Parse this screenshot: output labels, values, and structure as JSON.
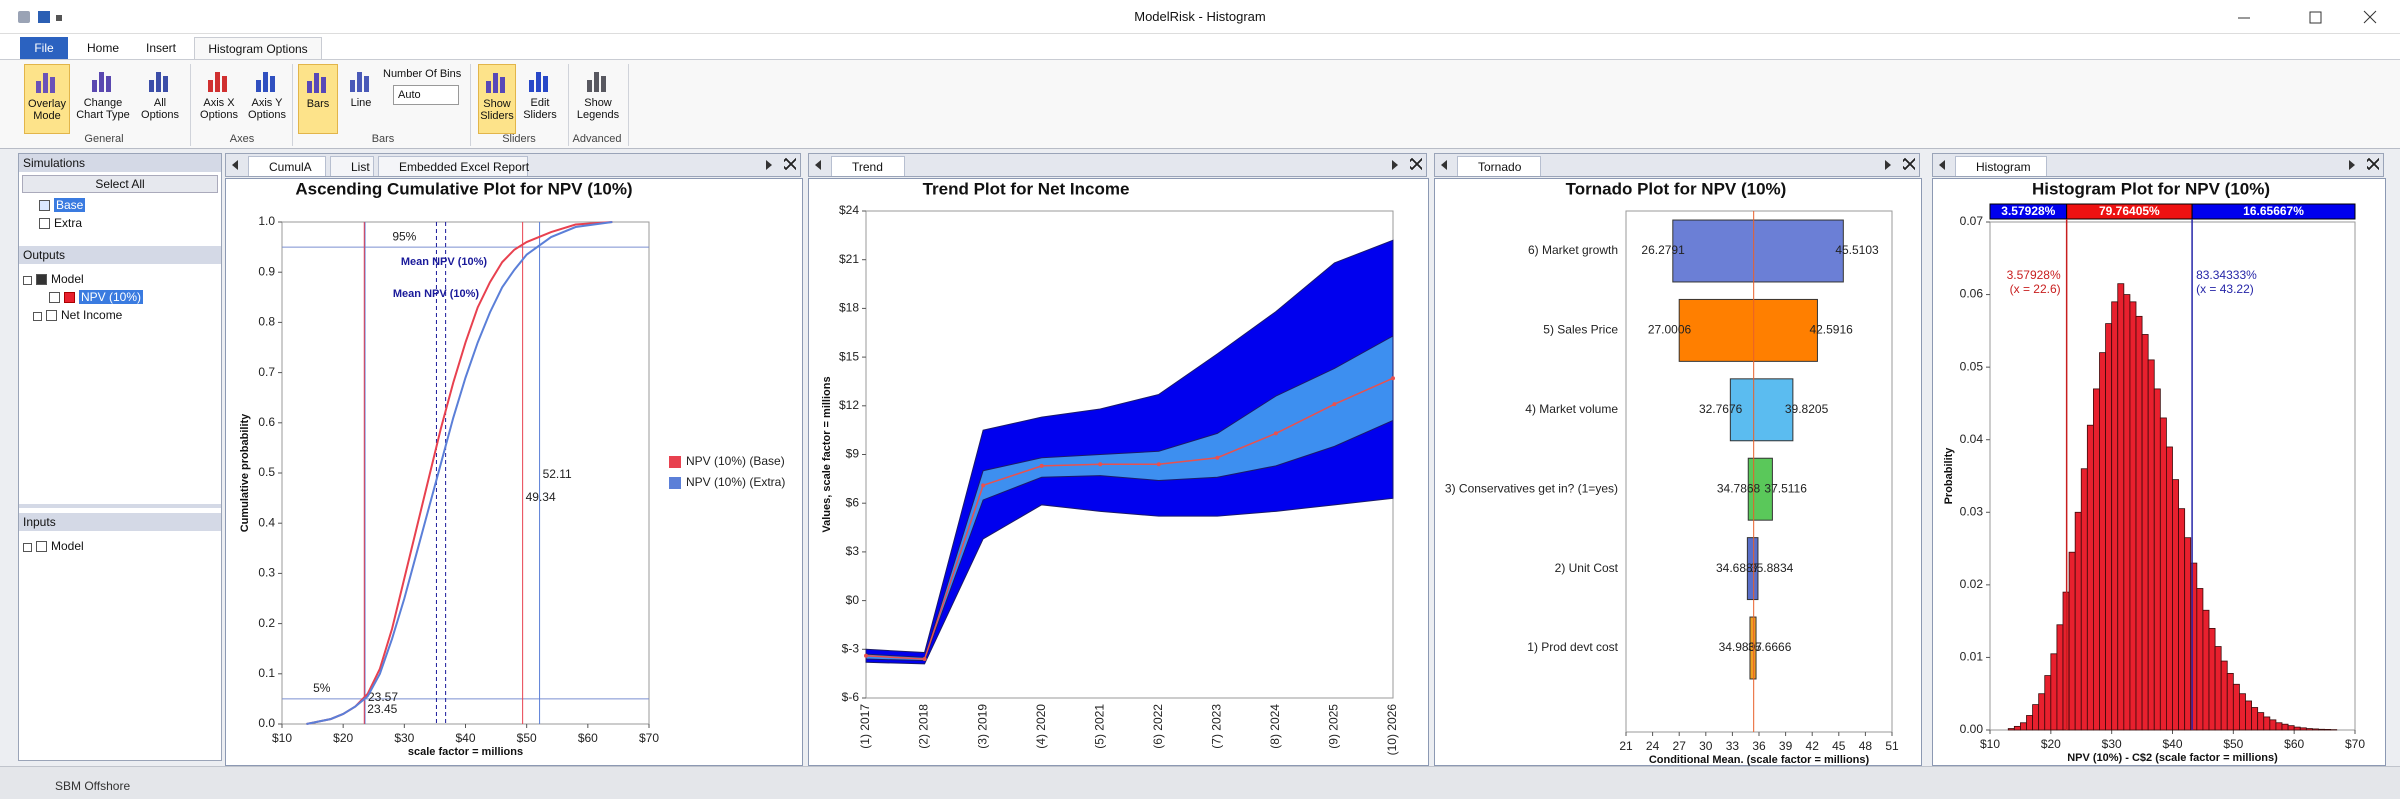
{
  "window": {
    "title": "ModelRisk - Histogram"
  },
  "ribbon": {
    "tabs": [
      "File",
      "Home",
      "Insert",
      "Histogram Options"
    ],
    "groups": [
      {
        "label": "General",
        "buttons": [
          "Overlay Mode",
          "Change Chart Type",
          "All Options"
        ]
      },
      {
        "label": "Axes",
        "buttons": [
          "Axis X Options",
          "Axis Y Options"
        ]
      },
      {
        "label": "Bars",
        "buttons": [
          "Bars",
          "Line"
        ],
        "bins_label": "Number Of Bins",
        "bins_value": "Auto"
      },
      {
        "label": "Sliders",
        "buttons": [
          "Show Sliders",
          "Edit Sliders"
        ]
      },
      {
        "label": "Advanced",
        "buttons": [
          "Show Legends"
        ]
      }
    ]
  },
  "sidebar": {
    "simulations": {
      "title": "Simulations",
      "select_all": "Select All",
      "items": [
        "Base",
        "Extra"
      ]
    },
    "outputs": {
      "title": "Outputs",
      "model": "Model",
      "items": [
        "NPV (10%)",
        "Net Income"
      ]
    },
    "inputs": {
      "title": "Inputs",
      "items": [
        "Model"
      ]
    }
  },
  "panel_tabs": [
    [
      "CumulA",
      "List",
      "Embedded Excel Report"
    ],
    [
      "Trend"
    ],
    [
      "Tornado"
    ],
    [
      "Histogram"
    ]
  ],
  "status": {
    "text": "SBM Offshore"
  },
  "chart_data": [
    {
      "type": "line",
      "title": "Ascending Cumulative Plot for NPV (10%)",
      "x_label": "scale factor = millions",
      "y_label": "Cumulative probability",
      "xlim": [
        10,
        70
      ],
      "xticks": [
        {
          "value": 10,
          "label": "$10"
        },
        {
          "value": 20,
          "label": "$20"
        },
        {
          "value": 30,
          "label": "$30"
        },
        {
          "value": 40,
          "label": "$40"
        },
        {
          "value": 50,
          "label": "$50"
        },
        {
          "value": 60,
          "label": "$60"
        },
        {
          "value": 70,
          "label": "$70"
        }
      ],
      "ylim": [
        0,
        1
      ],
      "yticks": [
        {
          "value": 0,
          "label": "0.0"
        },
        0.1,
        0.2,
        0.3,
        0.4,
        0.5,
        0.6,
        0.7,
        0.8,
        0.9,
        {
          "value": 1,
          "label": "1.0"
        }
      ],
      "x": [
        14,
        18,
        20,
        22,
        24,
        26,
        28,
        30,
        32,
        34,
        36,
        38,
        40,
        42,
        44,
        46,
        48,
        50,
        54,
        58,
        64
      ],
      "series": [
        {
          "name": "NPV (10%) (Base)",
          "color": "#e8414f",
          "values": [
            0,
            0.01,
            0.02,
            0.035,
            0.06,
            0.11,
            0.19,
            0.29,
            0.39,
            0.49,
            0.59,
            0.68,
            0.76,
            0.83,
            0.88,
            0.92,
            0.945,
            0.96,
            0.98,
            0.995,
            1
          ]
        },
        {
          "name": "NPV (10%) (Extra)",
          "color": "#5b7fd8",
          "values": [
            0,
            0.01,
            0.02,
            0.035,
            0.055,
            0.1,
            0.17,
            0.25,
            0.34,
            0.43,
            0.52,
            0.61,
            0.69,
            0.76,
            0.82,
            0.87,
            0.905,
            0.935,
            0.97,
            0.99,
            1
          ]
        }
      ],
      "legend": "right",
      "percentile_lines": [
        {
          "value": 0.95,
          "label": "95%"
        },
        {
          "value": 0.05,
          "label": "5%"
        }
      ],
      "percentile_color": "#7b8fd0",
      "mean_lines": [
        {
          "value": 35.25,
          "label": "Mean NPV (10%)"
        },
        {
          "value": 36.75,
          "label": "Mean NPV (10%)"
        }
      ],
      "mean_color": "#1a1a9a",
      "sliders": [
        {
          "value": 23.57,
          "color": "#5b7fd8"
        },
        {
          "value": 23.45,
          "color": "#e8414f"
        },
        {
          "value": 52.11,
          "color": "#5b7fd8"
        },
        {
          "value": 49.34,
          "color": "#e8414f"
        }
      ]
    },
    {
      "type": "fan",
      "title": "Trend Plot for Net Income",
      "y_label": "Values, scale factor = millions",
      "categories": [
        "(1) 2017",
        "(2) 2018",
        "(3) 2019",
        "(4) 2020",
        "(5) 2021",
        "(6) 2022",
        "(7) 2023",
        "(8) 2024",
        "(9) 2025",
        "(10) 2026"
      ],
      "ylim": [
        -6,
        24
      ],
      "yticks": [
        {
          "value": -6,
          "label": "$-6"
        },
        {
          "value": -3,
          "label": "$-3"
        },
        {
          "value": 0,
          "label": "$0"
        },
        {
          "value": 3,
          "label": "$3"
        },
        {
          "value": 6,
          "label": "$6"
        },
        {
          "value": 9,
          "label": "$9"
        },
        {
          "value": 12,
          "label": "$12"
        },
        {
          "value": 15,
          "label": "$15"
        },
        {
          "value": 18,
          "label": "$18"
        },
        {
          "value": 21,
          "label": "$21"
        },
        {
          "value": 24,
          "label": "$24"
        }
      ],
      "bands": [
        {
          "color": "#0000ee",
          "upper": [
            -3.0,
            -3.2,
            10.5,
            11.3,
            11.8,
            12.7,
            15.2,
            17.8,
            20.8,
            22.2
          ],
          "lower": [
            -3.8,
            -3.9,
            3.8,
            5.9,
            5.5,
            5.2,
            5.2,
            5.5,
            5.9,
            6.3
          ]
        },
        {
          "color": "#3d8ff0",
          "upper": [
            -3.3,
            -3.5,
            8.0,
            8.8,
            9.0,
            9.2,
            10.3,
            12.6,
            14.3,
            16.3
          ],
          "lower": [
            -3.6,
            -3.7,
            6.2,
            7.6,
            7.7,
            7.4,
            7.6,
            8.3,
            9.5,
            11.1
          ]
        }
      ],
      "mean": {
        "color": "#e8514f",
        "values": [
          -3.4,
          -3.6,
          7.1,
          8.3,
          8.4,
          8.4,
          8.8,
          10.3,
          12.1,
          13.7
        ]
      }
    },
    {
      "type": "tornado",
      "title": "Tornado Plot for NPV (10%)",
      "x_label": "Conditional Mean. (scale factor = millions)",
      "categories": [
        "6) Market growth",
        "5) Sales Price",
        "4) Market volume",
        "3) Conservatives get in? (1=yes)",
        "2) Unit Cost",
        "1) Prod devt cost"
      ],
      "low": [
        26.2791,
        27.0006,
        32.7676,
        34.7868,
        34.6887,
        34.9807
      ],
      "high": [
        45.5103,
        42.5916,
        39.8205,
        37.5116,
        35.8834,
        35.6666
      ],
      "colors": [
        "#6b7fd6",
        "#ff7f00",
        "#5bbcf0",
        "#5ac85a",
        "#5a6fc8",
        "#f0a020"
      ],
      "baseline": 35.4,
      "baseline_color": "#e8602a",
      "xlim": [
        21,
        51
      ],
      "xticks": [
        21,
        24,
        27,
        30,
        33,
        36,
        39,
        42,
        45,
        48,
        51
      ]
    },
    {
      "type": "histogram",
      "title": "Histogram Plot for NPV (10%)",
      "x_label": "NPV (10%) - C$2 (scale factor = millions)",
      "y_label": "Probability",
      "bins": [
        13,
        14,
        15,
        16,
        17,
        18,
        19,
        20,
        21,
        22,
        23,
        24,
        25,
        26,
        27,
        28,
        29,
        30,
        31,
        32,
        33,
        34,
        35,
        36,
        37,
        38,
        39,
        40,
        41,
        42,
        43,
        44,
        45,
        46,
        47,
        48,
        49,
        50,
        51,
        52,
        53,
        54,
        55,
        56,
        57,
        58,
        59,
        60,
        61,
        62,
        63,
        64,
        65,
        66,
        67
      ],
      "values": [
        0.0002,
        0.0005,
        0.001,
        0.002,
        0.0035,
        0.005,
        0.0075,
        0.0105,
        0.0145,
        0.019,
        0.0245,
        0.03,
        0.036,
        0.042,
        0.047,
        0.052,
        0.056,
        0.059,
        0.0615,
        0.06,
        0.059,
        0.057,
        0.0545,
        0.051,
        0.047,
        0.043,
        0.039,
        0.0345,
        0.0305,
        0.0265,
        0.023,
        0.0195,
        0.0165,
        0.014,
        0.0115,
        0.0095,
        0.0078,
        0.0063,
        0.005,
        0.004,
        0.0031,
        0.0024,
        0.0018,
        0.0014,
        0.001,
        0.0008,
        0.0006,
        0.0004,
        0.0003,
        0.0002,
        0.00015,
        0.0001,
        8e-05,
        5e-05
      ],
      "color": "#e8202e",
      "xlim": [
        10,
        70
      ],
      "xticks": [
        {
          "value": 10,
          "label": "$10"
        },
        {
          "value": 20,
          "label": "$20"
        },
        {
          "value": 30,
          "label": "$30"
        },
        {
          "value": 40,
          "label": "$40"
        },
        {
          "value": 50,
          "label": "$50"
        },
        {
          "value": 60,
          "label": "$60"
        },
        {
          "value": 70,
          "label": "$70"
        }
      ],
      "ylim": [
        0,
        0.07
      ],
      "yticks": [
        {
          "value": 0,
          "label": "0.00"
        },
        0.01,
        0.02,
        0.03,
        0.04,
        0.05,
        0.06,
        0.07
      ],
      "slider_bar": [
        {
          "value": 3.57928,
          "label": "3.57928%",
          "color": "#0000ee"
        },
        {
          "value": 79.76405,
          "label": "79.76405%",
          "color": "#ee1111"
        },
        {
          "value": 16.65667,
          "label": "16.65667%",
          "color": "#0000ee"
        }
      ],
      "sliders": [
        {
          "value": 22.6,
          "label": "(x = 22.6)",
          "color": "#c81e1e",
          "percent": {
            "value": 3.57928,
            "label": "3.57928%"
          }
        },
        {
          "value": 43.22,
          "label": "(x = 43.22)",
          "color": "#2626a8",
          "percent": {
            "value": 83.34333,
            "label": "83.34333%"
          }
        }
      ]
    }
  ]
}
